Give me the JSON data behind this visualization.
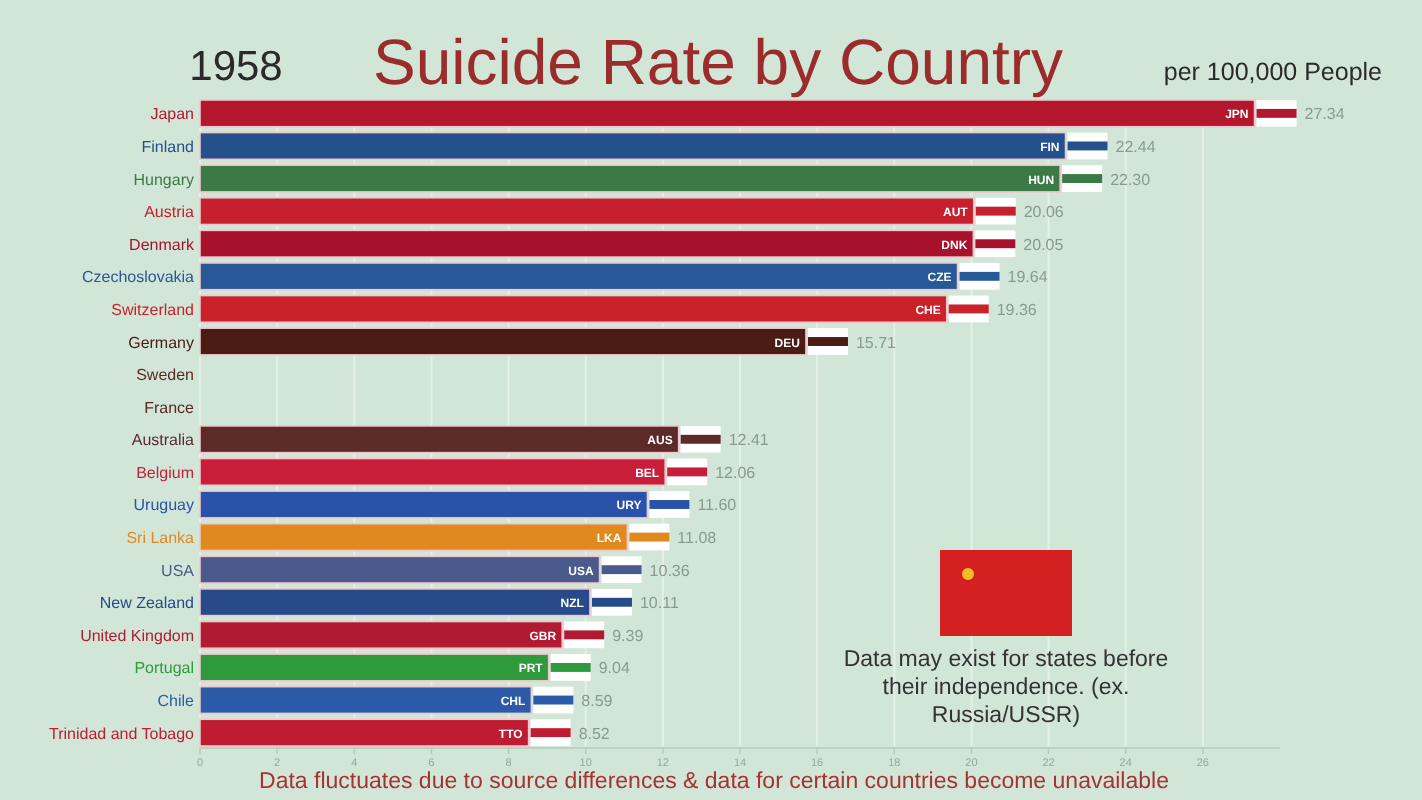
{
  "chart_data": {
    "type": "bar",
    "orientation": "horizontal",
    "title": "Suicide Rate by Country",
    "subtitle": "per 100,000 People",
    "categories": [
      "Japan",
      "Finland",
      "Hungary",
      "Austria",
      "Denmark",
      "Czechoslovakia",
      "Switzerland",
      "Germany",
      "Sweden",
      "France",
      "Australia",
      "Belgium",
      "Uruguay",
      "Sri Lanka",
      "USA",
      "New Zealand",
      "United Kingdom",
      "Portugal",
      "Chile",
      "Trinidad and Tobago"
    ],
    "values": [
      27.34,
      22.44,
      22.3,
      20.06,
      20.05,
      19.64,
      19.36,
      15.71,
      null,
      null,
      12.41,
      12.06,
      11.6,
      11.08,
      10.36,
      10.11,
      9.39,
      9.04,
      8.59,
      8.52
    ],
    "value_labels": [
      "27.34",
      "22.44",
      "22.30",
      "20.06",
      "20.05",
      "19.64",
      "19.36",
      "15.71",
      null,
      null,
      "12.41",
      "12.06",
      "11.60",
      "11.08",
      "10.36",
      "10.11",
      "9.39",
      "9.04",
      "8.59",
      "8.52"
    ],
    "colors": [
      "#b3172d",
      "#24508c",
      "#3b7a46",
      "#c61f2e",
      "#a8112b",
      "#275897",
      "#c9222a",
      "#4a1c14",
      "#5a2a22",
      "#5a2a22",
      "#5c2b29",
      "#c81e3a",
      "#2a52aa",
      "#e0891e",
      "#4a5a8c",
      "#264a8a",
      "#b11b31",
      "#2e9a3c",
      "#2b5aa8",
      "#bf1b31"
    ],
    "xlim": [
      0,
      28
    ],
    "xticks": [
      0,
      2,
      4,
      6,
      8,
      10,
      12,
      14,
      16,
      18,
      20,
      22,
      24,
      26
    ],
    "grid": "x",
    "annotations": [
      "1958",
      "Data may exist for states before their independence. (ex. Russia/USSR)",
      "Data fluctuates due to source differences & data for certain countries become unavailable",
      {
        "text": "JPN",
        "x": 27.34,
        "y": "Japan"
      },
      {
        "text": "FIN",
        "x": 22.44,
        "y": "Finland"
      },
      {
        "text": "HUN",
        "x": 22.3,
        "y": "Hungary"
      },
      {
        "text": "AUT",
        "x": 20.06,
        "y": "Austria"
      },
      {
        "text": "DNK",
        "x": 20.05,
        "y": "Denmark"
      },
      {
        "text": "CZE",
        "x": 19.64,
        "y": "Czechoslovakia"
      },
      {
        "text": "CHE",
        "x": 19.36,
        "y": "Switzerland"
      },
      {
        "text": "DEU",
        "x": 15.71,
        "y": "Germany"
      },
      {
        "text": "AUS",
        "x": 12.41,
        "y": "Australia"
      },
      {
        "text": "BEL",
        "x": 12.06,
        "y": "Belgium"
      },
      {
        "text": "URY",
        "x": 11.6,
        "y": "Uruguay"
      },
      {
        "text": "LKA",
        "x": 11.08,
        "y": "Sri Lanka"
      },
      {
        "text": "USA",
        "x": 10.36,
        "y": "USA"
      },
      {
        "text": "NZL",
        "x": 10.11,
        "y": "New Zealand"
      },
      {
        "text": "GBR",
        "x": 9.39,
        "y": "United Kingdom"
      },
      {
        "text": "PRT",
        "x": 9.04,
        "y": "Portugal"
      },
      {
        "text": "CHL",
        "x": 8.59,
        "y": "Chile"
      },
      {
        "text": "TTO",
        "x": 8.52,
        "y": "Trinidad and Tobago"
      }
    ]
  }
}
